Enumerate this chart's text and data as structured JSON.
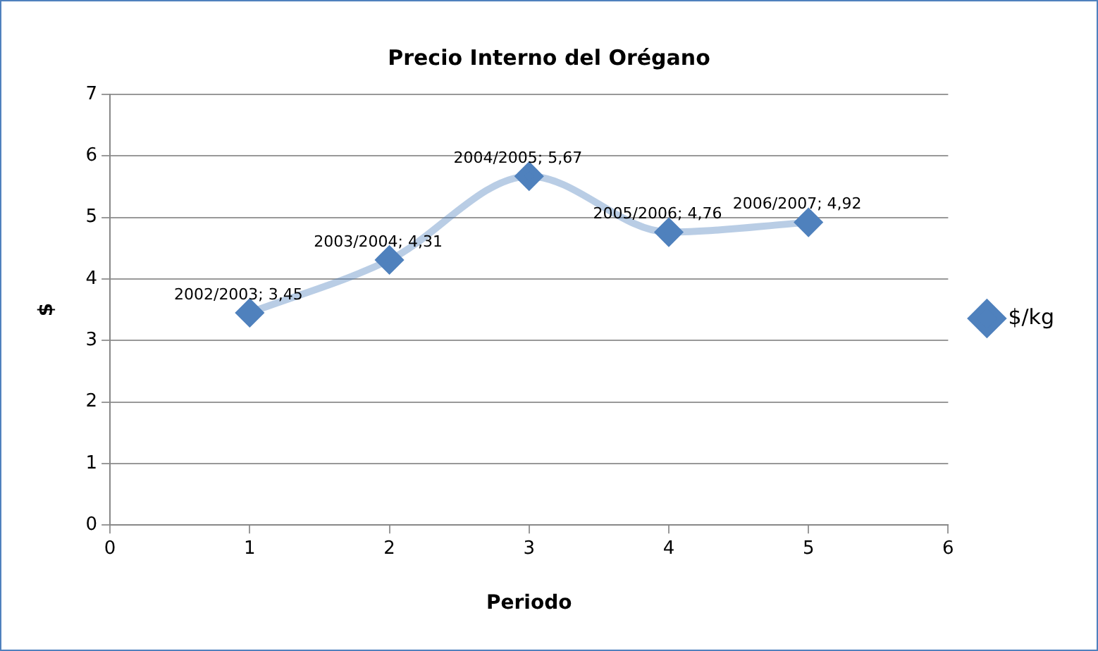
{
  "chart_data": {
    "type": "line",
    "title": "Precio Interno del Orégano",
    "xlabel": "Periodo",
    "ylabel": "$",
    "x": [
      1,
      2,
      3,
      4,
      5
    ],
    "series": [
      {
        "name": "$/kg",
        "color": "#4f81bd",
        "values": [
          3.45,
          4.31,
          5.67,
          4.76,
          4.92
        ]
      }
    ],
    "annotations": [
      {
        "text": "2002/2003; 3,45",
        "x": 1,
        "y": 3.45
      },
      {
        "text": "2003/2004; 4,31",
        "x": 2,
        "y": 4.31
      },
      {
        "text": "2004/2005; 5,67",
        "x": 3,
        "y": 5.67
      },
      {
        "text": "2005/2006; 4,76",
        "x": 4,
        "y": 4.76
      },
      {
        "text": "2006/2007; 4,92",
        "x": 5,
        "y": 4.92
      }
    ],
    "xlim": [
      0,
      6
    ],
    "xticks": [
      0,
      1,
      2,
      3,
      4,
      5,
      6
    ],
    "ylim": [
      0,
      7
    ],
    "yticks": [
      0,
      1,
      2,
      3,
      4,
      5,
      6,
      7
    ],
    "grid": "y",
    "legend": "right",
    "marker": "diamond",
    "line_style": "solid"
  }
}
